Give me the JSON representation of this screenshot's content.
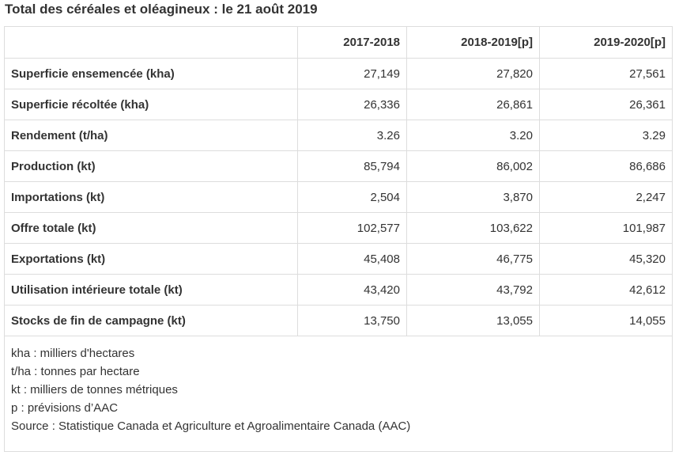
{
  "title": "Total des céréales et oléagineux : le 21 août 2019",
  "table": {
    "headers": [
      "",
      "2017-2018",
      "2018-2019[p]",
      "2019-2020[p]"
    ],
    "rows": [
      {
        "label": "Superficie ensemencée (kha)",
        "values": [
          "27,149",
          "27,820",
          "27,561"
        ]
      },
      {
        "label": "Superficie récoltée (kha)",
        "values": [
          "26,336",
          "26,861",
          "26,361"
        ]
      },
      {
        "label": "Rendement (t/ha)",
        "values": [
          "3.26",
          "3.20",
          "3.29"
        ]
      },
      {
        "label": "Production (kt)",
        "values": [
          "85,794",
          "86,002",
          "86,686"
        ]
      },
      {
        "label": "Importations (kt)",
        "values": [
          "2,504",
          "3,870",
          "2,247"
        ]
      },
      {
        "label": "Offre totale (kt)",
        "values": [
          "102,577",
          "103,622",
          "101,987"
        ]
      },
      {
        "label": "Exportations (kt)",
        "values": [
          "45,408",
          "46,775",
          "45,320"
        ]
      },
      {
        "label": "Utilisation intérieure totale (kt)",
        "values": [
          "43,420",
          "43,792",
          "42,612"
        ]
      },
      {
        "label": "Stocks de fin de campagne (kt)",
        "values": [
          "13,750",
          "13,055",
          "14,055"
        ]
      }
    ],
    "notes": [
      "kha : milliers d'hectares",
      "t/ha : tonnes par hectare",
      "kt : milliers de tonnes métriques",
      "p : prévisions d’AAC",
      "Source : Statistique Canada et Agriculture et Agroalimentaire Canada (AAC)"
    ]
  }
}
